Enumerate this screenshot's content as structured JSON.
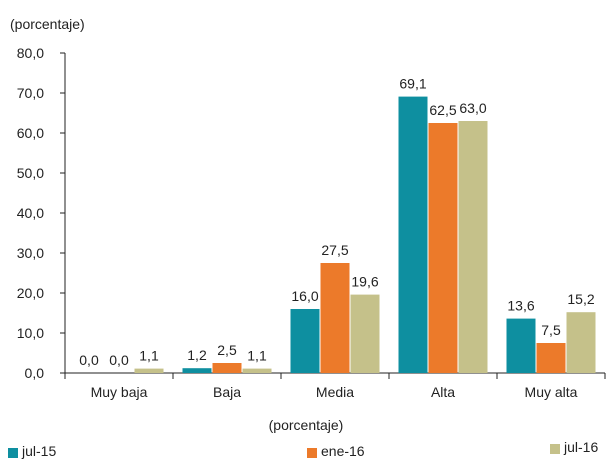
{
  "chart_data": {
    "type": "bar",
    "title": "",
    "unit_label_top": "(porcentaje)",
    "xlabel": "(porcentaje)",
    "ylabel": "",
    "categories": [
      "Muy baja",
      "Baja",
      "Media",
      "Alta",
      "Muy alta"
    ],
    "series": [
      {
        "name": "jul-15",
        "color": "#0e8fa0",
        "values": [
          0.0,
          1.2,
          16.0,
          69.1,
          13.6
        ],
        "labels": [
          "0,0",
          "1,2",
          "16,0",
          "69,1",
          "13,6"
        ]
      },
      {
        "name": "ene-16",
        "color": "#ec7a2a",
        "values": [
          0.0,
          2.5,
          27.5,
          62.5,
          7.5
        ],
        "labels": [
          "0,0",
          "2,5",
          "27,5",
          "62,5",
          "7,5"
        ]
      },
      {
        "name": "jul-16",
        "color": "#c5c18a",
        "values": [
          1.1,
          1.1,
          19.6,
          63.0,
          15.2
        ],
        "labels": [
          "1,1",
          "1,1",
          "19,6",
          "63,0",
          "15,2"
        ]
      }
    ],
    "ylim": [
      0,
      80
    ],
    "yticks": [
      0,
      10,
      20,
      30,
      40,
      50,
      60,
      70,
      80
    ],
    "ytick_labels": [
      "0,0",
      "10,0",
      "20,0",
      "30,0",
      "40,0",
      "50,0",
      "60,0",
      "70,0",
      "80,0"
    ],
    "grid": false,
    "legend_position": "bottom"
  }
}
